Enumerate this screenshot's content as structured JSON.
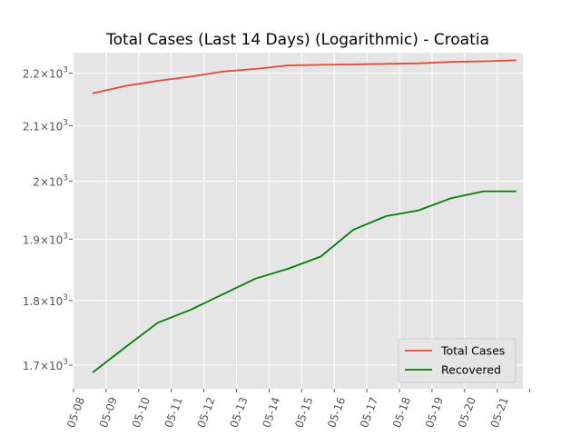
{
  "chart_data": {
    "type": "line",
    "title": "Total Cases (Last 14 Days) (Logarithmic) - Croatia",
    "xlabel": "",
    "ylabel": "",
    "y_scale": "log",
    "ylim": [
      1665,
      2240
    ],
    "grid": true,
    "legend_position": "lower-right",
    "x_tick_labels": [
      "05-08",
      "05-09",
      "05-10",
      "05-11",
      "05-12",
      "05-13",
      "05-14",
      "05-15",
      "05-16",
      "05-17",
      "05-18",
      "05-19",
      "05-20",
      "05-21"
    ],
    "y_ticks": [
      {
        "value": 1700,
        "base": "1.7",
        "exp": "3"
      },
      {
        "value": 1800,
        "base": "1.8",
        "exp": "3"
      },
      {
        "value": 1900,
        "base": "1.9",
        "exp": "3"
      },
      {
        "value": 2000,
        "base": "2",
        "exp": "3"
      },
      {
        "value": 2100,
        "base": "2.1",
        "exp": "3"
      },
      {
        "value": 2200,
        "base": "2.2",
        "exp": "3"
      }
    ],
    "series": [
      {
        "name": "Total Cases",
        "color": "#e24a33",
        "dates": [
          "05-08",
          "05-09",
          "05-10",
          "05-11",
          "05-12",
          "05-13",
          "05-14",
          "05-15",
          "05-16",
          "05-17",
          "05-18",
          "05-19",
          "05-20",
          "05-21"
        ],
        "values": [
          2161,
          2175,
          2185,
          2193,
          2203,
          2208,
          2215,
          2216,
          2217,
          2218,
          2219,
          2222,
          2223,
          2225
        ]
      },
      {
        "name": "Recovered",
        "color": "#008000",
        "dates": [
          "05-08",
          "05-09",
          "05-10",
          "05-11",
          "05-12",
          "05-13",
          "05-14",
          "05-15",
          "05-16",
          "05-17",
          "05-18",
          "05-19",
          "05-20",
          "05-21"
        ],
        "values": [
          1689,
          1727,
          1765,
          1785,
          1810,
          1835,
          1851,
          1871,
          1916,
          1939,
          1949,
          1970,
          1982,
          1982
        ]
      }
    ]
  }
}
